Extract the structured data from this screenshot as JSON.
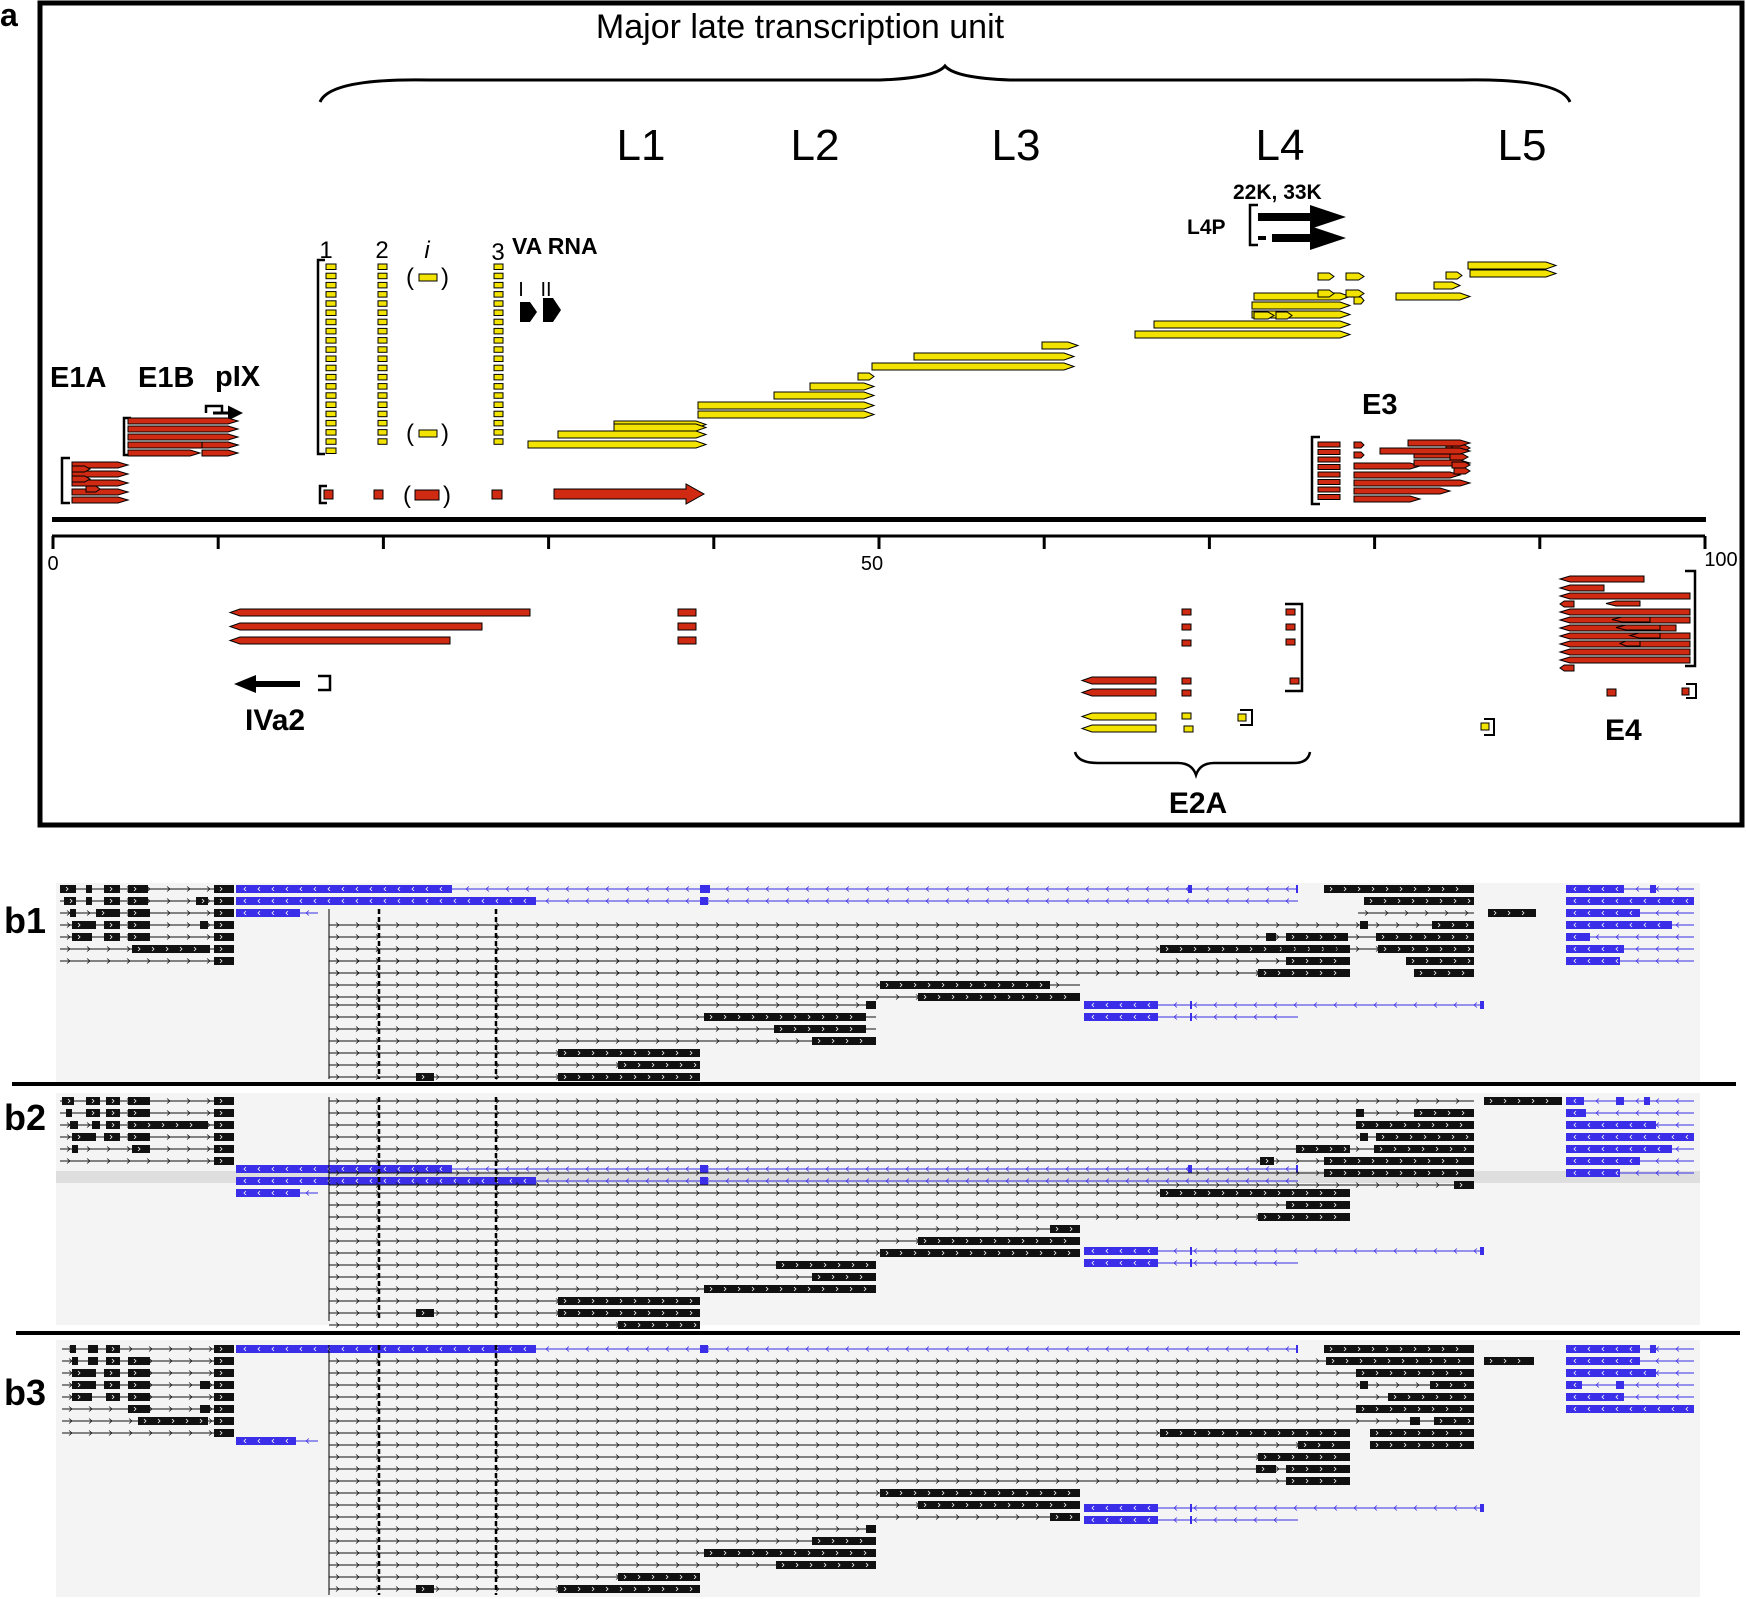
{
  "panel_a": {
    "label": "a",
    "unit_title": "Major late transcription unit",
    "late_families": [
      "L1",
      "L2",
      "L3",
      "L4",
      "L5"
    ],
    "leaders": [
      "1",
      "2",
      "i",
      "3"
    ],
    "va_rna": "VA RNA",
    "va_numerals": [
      "I",
      "II"
    ],
    "l4_products": "22K, 33K",
    "l4p": "L4P",
    "early": {
      "e1a": "E1A",
      "e1b": "E1B",
      "pix": "pIX",
      "e3": "E3",
      "iva2": "IVa2",
      "e2a": "E2A",
      "e4": "E4"
    },
    "axis": {
      "min": 0,
      "max": 100,
      "labels": [
        "0",
        "50",
        "100"
      ],
      "major_ticks": [
        0,
        10,
        20,
        30,
        40,
        50,
        60,
        70,
        80,
        90,
        100
      ]
    }
  },
  "panels_b": [
    "b1",
    "b2",
    "b3"
  ],
  "colors": {
    "late_exon": "#f2e300",
    "early_exon": "#d12a12",
    "forward_track": "#111111",
    "reverse_track": "#3a2ee8",
    "track_background": "#f4f4f4"
  }
}
